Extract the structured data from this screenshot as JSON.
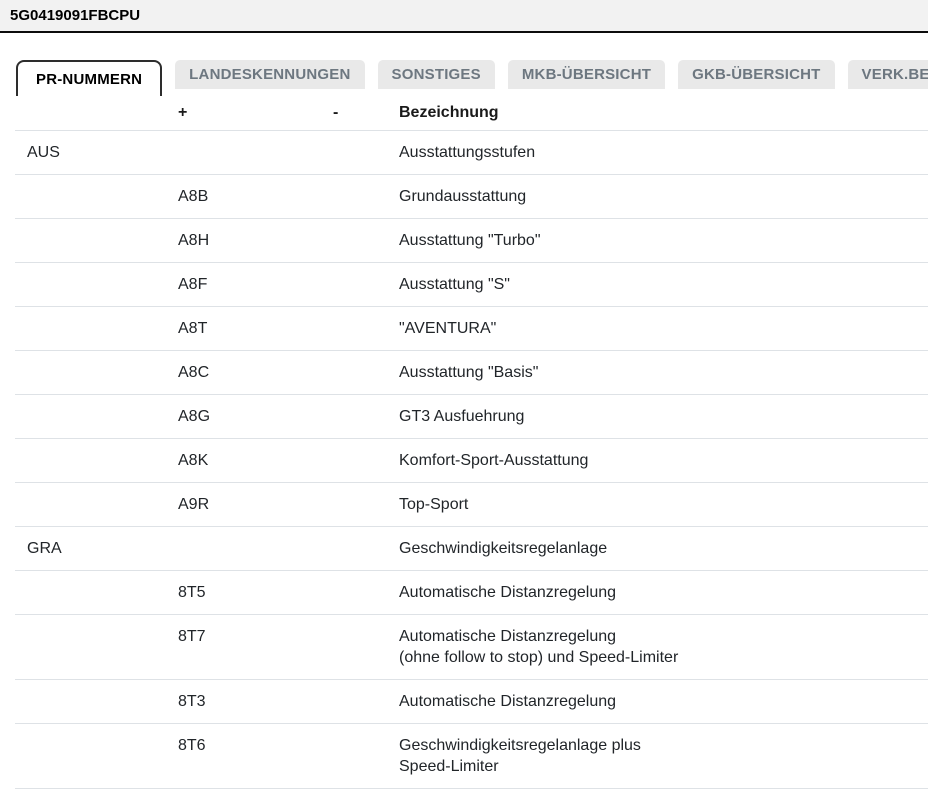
{
  "header": {
    "title": "5G0419091FBCPU"
  },
  "tabs": [
    {
      "label": "PR-NUMMERN",
      "active": true
    },
    {
      "label": "LANDESKENNUNGEN",
      "active": false
    },
    {
      "label": "SONSTIGES",
      "active": false
    },
    {
      "label": "MKB-ÜBERSICHT",
      "active": false
    },
    {
      "label": "GKB-ÜBERSICHT",
      "active": false
    },
    {
      "label": "VERK.BEZ",
      "active": false
    }
  ],
  "table": {
    "columns": {
      "plus": "+",
      "minus": "-",
      "name": "Bezeichnung"
    },
    "rows": [
      {
        "group": "AUS",
        "code": "",
        "minus": "",
        "name": "Ausstattungsstufen"
      },
      {
        "group": "",
        "code": "A8B",
        "minus": "",
        "name": "Grundausstattung"
      },
      {
        "group": "",
        "code": "A8H",
        "minus": "",
        "name": "Ausstattung \"Turbo\""
      },
      {
        "group": "",
        "code": "A8F",
        "minus": "",
        "name": "Ausstattung \"S\""
      },
      {
        "group": "",
        "code": "A8T",
        "minus": "",
        "name": "\"AVENTURA\""
      },
      {
        "group": "",
        "code": "A8C",
        "minus": "",
        "name": "Ausstattung \"Basis\""
      },
      {
        "group": "",
        "code": "A8G",
        "minus": "",
        "name": "GT3 Ausfuehrung"
      },
      {
        "group": "",
        "code": "A8K",
        "minus": "",
        "name": "Komfort-Sport-Ausstattung"
      },
      {
        "group": "",
        "code": "A9R",
        "minus": "",
        "name": "Top-Sport"
      },
      {
        "group": "GRA",
        "code": "",
        "minus": "",
        "name": "Geschwindigkeitsregelanlage"
      },
      {
        "group": "",
        "code": "8T5",
        "minus": "",
        "name": "Automatische Distanzregelung"
      },
      {
        "group": "",
        "code": "8T7",
        "minus": "",
        "name": "Automatische Distanzregelung\n(ohne follow to stop) und Speed-Limiter"
      },
      {
        "group": "",
        "code": "8T3",
        "minus": "",
        "name": "Automatische Distanzregelung"
      },
      {
        "group": "",
        "code": "8T6",
        "minus": "",
        "name": "Geschwindigkeitsregelanlage plus\nSpeed-Limiter"
      }
    ]
  },
  "colors": {
    "topbar_bg": "#f2f2f2",
    "topbar_border": "#0c0c0c",
    "tab_inactive_bg": "#e9e9e9",
    "tab_inactive_text": "#6d7780",
    "tab_active_border": "#2d2d2d",
    "row_separator": "#dee2e6",
    "body_text": "#212529"
  }
}
